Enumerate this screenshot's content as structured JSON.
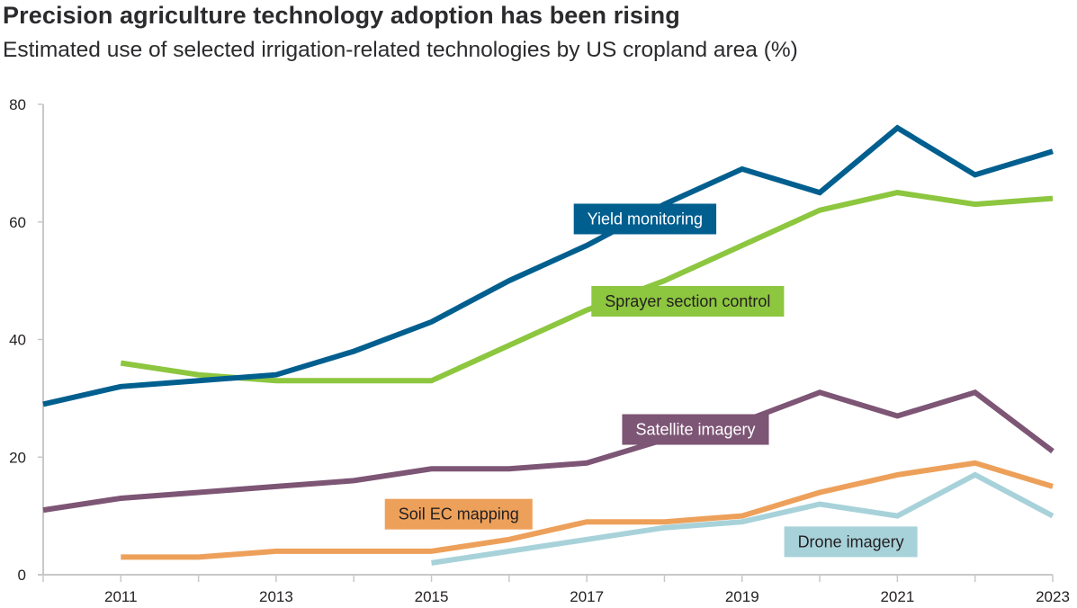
{
  "header": {
    "title": "Precision agriculture technology adoption has been rising",
    "subtitle": "Estimated use of selected irrigation-related technologies by US cropland area (%)"
  },
  "chart_data": {
    "type": "line",
    "title": "Precision agriculture technology adoption has been rising",
    "subtitle": "Estimated use of selected irrigation-related technologies by US cropland area (%)",
    "xlabel": "",
    "ylabel": "",
    "xlim": [
      2010,
      2023
    ],
    "ylim": [
      0,
      80
    ],
    "x_ticks": [
      2010,
      2011,
      2012,
      2013,
      2014,
      2015,
      2016,
      2017,
      2018,
      2019,
      2020,
      2021,
      2022,
      2023
    ],
    "x_tick_labels": [
      "2011",
      "2013",
      "2015",
      "2017",
      "2019",
      "2021",
      "2023"
    ],
    "x_tick_label_years": [
      2011,
      2013,
      2015,
      2017,
      2019,
      2021,
      2023
    ],
    "y_ticks": [
      0,
      20,
      40,
      60,
      80
    ],
    "y_tick_labels": [
      "0",
      "20",
      "40",
      "60",
      "80"
    ],
    "grid": false,
    "legend": "inline-labels",
    "series": [
      {
        "name": "Yield monitoring",
        "color": "#005f8f",
        "label_text_color": "#ffffff",
        "label_anchor": {
          "x": 2017.75,
          "y": 60.5
        },
        "x": [
          2010,
          2011,
          2012,
          2013,
          2014,
          2015,
          2016,
          2017,
          2018,
          2019,
          2020,
          2021,
          2022,
          2023
        ],
        "values": [
          29,
          32,
          33,
          34,
          38,
          43,
          50,
          56,
          63,
          69,
          65,
          76,
          68,
          72
        ]
      },
      {
        "name": "Sprayer section control",
        "color": "#8dc63f",
        "label_text_color": "#231f20",
        "label_anchor": {
          "x": 2018.3,
          "y": 46.5
        },
        "x": [
          2011,
          2012,
          2013,
          2014,
          2015,
          2016,
          2017,
          2018,
          2019,
          2020,
          2021,
          2022,
          2023
        ],
        "values": [
          36,
          34,
          33,
          33,
          33,
          39,
          45,
          50,
          56,
          62,
          65,
          63,
          64
        ]
      },
      {
        "name": "Satellite imagery",
        "color": "#7d5575",
        "label_text_color": "#ffffff",
        "label_anchor": {
          "x": 2018.4,
          "y": 24.7
        },
        "x": [
          2010,
          2011,
          2012,
          2013,
          2014,
          2015,
          2016,
          2017,
          2018,
          2019,
          2020,
          2021,
          2022,
          2023
        ],
        "values": [
          11,
          13,
          14,
          15,
          16,
          18,
          18,
          19,
          23,
          26,
          31,
          27,
          31,
          21
        ]
      },
      {
        "name": "Soil EC mapping",
        "color": "#eda05a",
        "label_text_color": "#231f20",
        "label_anchor": {
          "x": 2015.35,
          "y": 10.3
        },
        "x": [
          2011,
          2012,
          2013,
          2014,
          2015,
          2016,
          2017,
          2018,
          2019,
          2020,
          2021,
          2022,
          2023
        ],
        "values": [
          3,
          3,
          4,
          4,
          4,
          6,
          9,
          9,
          10,
          14,
          17,
          19,
          15
        ]
      },
      {
        "name": "Drone imagery",
        "color": "#a8d2da",
        "label_text_color": "#231f20",
        "label_anchor": {
          "x": 2020.4,
          "y": 5.6
        },
        "x": [
          2015,
          2016,
          2017,
          2018,
          2019,
          2020,
          2021,
          2022,
          2023
        ],
        "values": [
          2,
          4,
          6,
          8,
          9,
          12,
          10,
          17,
          10
        ]
      }
    ],
    "axis_color": "#c8c8c8"
  }
}
